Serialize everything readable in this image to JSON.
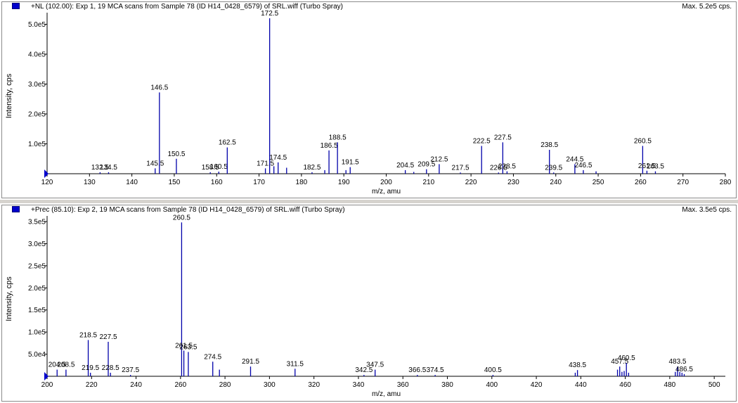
{
  "colors": {
    "peak": "#0000aa",
    "text": "#000000",
    "marker": "#0000cc"
  },
  "panels": [
    {
      "title": "+NL (102.00): Exp 1, 19 MCA scans from Sample 78 (ID H14_0428_6579) of SRL.wiff (Turbo Spray)",
      "max": "Max. 5.2e5 cps."
    },
    {
      "title": "+Prec (85.10): Exp 2, 19 MCA scans from Sample 78 (ID H14_0428_6579) of SRL.wiff (Turbo Spray)",
      "max": "Max. 3.5e5 cps."
    }
  ],
  "chart_data": [
    {
      "type": "bar",
      "xlabel": "m/z, amu",
      "ylabel": "Intensity, cps",
      "xlim": [
        120,
        280
      ],
      "ylim": [
        0,
        520000
      ],
      "xticks": [
        120,
        130,
        140,
        150,
        160,
        170,
        180,
        190,
        200,
        210,
        220,
        230,
        240,
        250,
        260,
        270,
        280
      ],
      "yticks": [
        100000,
        200000,
        300000,
        400000,
        500000
      ],
      "ytick_labels": [
        "1.0e5",
        "2.0e5",
        "3.0e5",
        "4.0e5",
        "5.0e5"
      ],
      "peaks": [
        {
          "mz": 132.5,
          "intensity": 5000,
          "label": "132.5"
        },
        {
          "mz": 134.5,
          "intensity": 5000,
          "label": "134.5"
        },
        {
          "mz": 145.5,
          "intensity": 18000,
          "label": "145.5"
        },
        {
          "mz": 146.5,
          "intensity": 272000,
          "label": "146.5"
        },
        {
          "mz": 150.5,
          "intensity": 50000,
          "label": "150.5"
        },
        {
          "mz": 158.5,
          "intensity": 5000,
          "label": "158.5"
        },
        {
          "mz": 160.5,
          "intensity": 7000,
          "label": "160.5"
        },
        {
          "mz": 162.5,
          "intensity": 88000,
          "label": "162.5"
        },
        {
          "mz": 171.5,
          "intensity": 18000,
          "label": "171.5"
        },
        {
          "mz": 172.5,
          "intensity": 520000,
          "label": "172.5"
        },
        {
          "mz": 173.5,
          "intensity": 25000,
          "label": ""
        },
        {
          "mz": 174.5,
          "intensity": 38000,
          "label": "174.5"
        },
        {
          "mz": 176.5,
          "intensity": 20000,
          "label": ""
        },
        {
          "mz": 182.5,
          "intensity": 5000,
          "label": "182.5"
        },
        {
          "mz": 185.5,
          "intensity": 12000,
          "label": ""
        },
        {
          "mz": 186.5,
          "intensity": 78000,
          "label": "186.5"
        },
        {
          "mz": 188.5,
          "intensity": 105000,
          "label": "188.5"
        },
        {
          "mz": 190.5,
          "intensity": 12000,
          "label": ""
        },
        {
          "mz": 191.5,
          "intensity": 22000,
          "label": "191.5"
        },
        {
          "mz": 204.5,
          "intensity": 12000,
          "label": "204.5"
        },
        {
          "mz": 206.5,
          "intensity": 6000,
          "label": ""
        },
        {
          "mz": 209.5,
          "intensity": 15000,
          "label": "209.5"
        },
        {
          "mz": 212.5,
          "intensity": 32000,
          "label": "212.5"
        },
        {
          "mz": 217.5,
          "intensity": 4000,
          "label": "217.5"
        },
        {
          "mz": 222.5,
          "intensity": 93000,
          "label": "222.5"
        },
        {
          "mz": 226.5,
          "intensity": 4000,
          "label": "226.5"
        },
        {
          "mz": 227.5,
          "intensity": 105000,
          "label": "227.5"
        },
        {
          "mz": 228.5,
          "intensity": 8000,
          "label": "228.5"
        },
        {
          "mz": 238.5,
          "intensity": 80000,
          "label": "238.5"
        },
        {
          "mz": 239.5,
          "intensity": 4000,
          "label": "239.5"
        },
        {
          "mz": 244.5,
          "intensity": 32000,
          "label": "244.5"
        },
        {
          "mz": 246.5,
          "intensity": 12000,
          "label": "246.5"
        },
        {
          "mz": 249.5,
          "intensity": 8000,
          "label": ""
        },
        {
          "mz": 260.5,
          "intensity": 93000,
          "label": "260.5"
        },
        {
          "mz": 261.5,
          "intensity": 10000,
          "label": "261.5"
        },
        {
          "mz": 263.5,
          "intensity": 8000,
          "label": "263.5"
        }
      ]
    },
    {
      "type": "bar",
      "xlabel": "m/z, amu",
      "ylabel": "Intensity, cps",
      "xlim": [
        200,
        505
      ],
      "ylim": [
        0,
        350000
      ],
      "xticks": [
        200,
        220,
        240,
        260,
        280,
        300,
        320,
        340,
        360,
        380,
        400,
        420,
        440,
        460,
        480,
        500
      ],
      "yticks": [
        50000,
        100000,
        150000,
        200000,
        250000,
        300000,
        350000
      ],
      "ytick_labels": [
        "5.0e4",
        "1.0e5",
        "1.5e5",
        "2.0e5",
        "2.5e5",
        "3.0e5",
        "3.5e5"
      ],
      "peaks": [
        {
          "mz": 204.5,
          "intensity": 15000,
          "label": "204.5"
        },
        {
          "mz": 208.5,
          "intensity": 15000,
          "label": "208.5"
        },
        {
          "mz": 218.5,
          "intensity": 82000,
          "label": "218.5"
        },
        {
          "mz": 219.5,
          "intensity": 8000,
          "label": "219.5"
        },
        {
          "mz": 227.5,
          "intensity": 78000,
          "label": "227.5"
        },
        {
          "mz": 228.5,
          "intensity": 8000,
          "label": "228.5"
        },
        {
          "mz": 237.5,
          "intensity": 3000,
          "label": "237.5"
        },
        {
          "mz": 260.5,
          "intensity": 348000,
          "label": "260.5"
        },
        {
          "mz": 261.5,
          "intensity": 58000,
          "label": "261.5"
        },
        {
          "mz": 263.5,
          "intensity": 55000,
          "label": "263.5"
        },
        {
          "mz": 274.5,
          "intensity": 33000,
          "label": "274.5"
        },
        {
          "mz": 277.5,
          "intensity": 15000,
          "label": ""
        },
        {
          "mz": 291.5,
          "intensity": 22000,
          "label": "291.5"
        },
        {
          "mz": 311.5,
          "intensity": 17000,
          "label": "311.5"
        },
        {
          "mz": 342.5,
          "intensity": 3000,
          "label": "342.5"
        },
        {
          "mz": 347.5,
          "intensity": 15000,
          "label": "347.5"
        },
        {
          "mz": 366.5,
          "intensity": 3000,
          "label": "366.5"
        },
        {
          "mz": 374.5,
          "intensity": 3000,
          "label": "374.5"
        },
        {
          "mz": 400.5,
          "intensity": 3000,
          "label": "400.5"
        },
        {
          "mz": 437.5,
          "intensity": 8000,
          "label": ""
        },
        {
          "mz": 438.5,
          "intensity": 14000,
          "label": "438.5"
        },
        {
          "mz": 456.5,
          "intensity": 15000,
          "label": ""
        },
        {
          "mz": 457.5,
          "intensity": 22000,
          "label": "457.5"
        },
        {
          "mz": 458.5,
          "intensity": 10000,
          "label": ""
        },
        {
          "mz": 459.5,
          "intensity": 12000,
          "label": ""
        },
        {
          "mz": 460.5,
          "intensity": 30000,
          "label": "460.5"
        },
        {
          "mz": 461.5,
          "intensity": 8000,
          "label": ""
        },
        {
          "mz": 482.5,
          "intensity": 10000,
          "label": ""
        },
        {
          "mz": 483.5,
          "intensity": 22000,
          "label": "483.5"
        },
        {
          "mz": 484.5,
          "intensity": 10000,
          "label": ""
        },
        {
          "mz": 485.5,
          "intensity": 8000,
          "label": ""
        },
        {
          "mz": 486.5,
          "intensity": 5000,
          "label": "486.5"
        }
      ]
    }
  ]
}
